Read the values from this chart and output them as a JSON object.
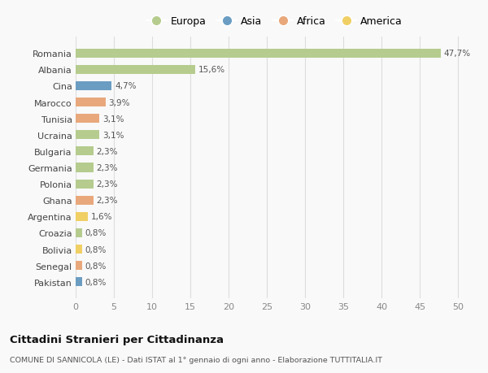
{
  "countries": [
    "Romania",
    "Albania",
    "Cina",
    "Marocco",
    "Tunisia",
    "Ucraina",
    "Bulgaria",
    "Germania",
    "Polonia",
    "Ghana",
    "Argentina",
    "Croazia",
    "Bolivia",
    "Senegal",
    "Pakistan"
  ],
  "values": [
    47.7,
    15.6,
    4.7,
    3.9,
    3.1,
    3.1,
    2.3,
    2.3,
    2.3,
    2.3,
    1.6,
    0.8,
    0.8,
    0.8,
    0.8
  ],
  "labels": [
    "47,7%",
    "15,6%",
    "4,7%",
    "3,9%",
    "3,1%",
    "3,1%",
    "2,3%",
    "2,3%",
    "2,3%",
    "2,3%",
    "1,6%",
    "0,8%",
    "0,8%",
    "0,8%",
    "0,8%"
  ],
  "continents": [
    "Europa",
    "Europa",
    "Asia",
    "Africa",
    "Africa",
    "Europa",
    "Europa",
    "Europa",
    "Europa",
    "Africa",
    "America",
    "Europa",
    "America",
    "Africa",
    "Asia"
  ],
  "colors": {
    "Europa": "#b5cc8e",
    "Asia": "#6b9dc2",
    "Africa": "#e8a87c",
    "America": "#f0cf65"
  },
  "legend_order": [
    "Europa",
    "Asia",
    "Africa",
    "America"
  ],
  "xlim": [
    0,
    52
  ],
  "xticks": [
    0,
    5,
    10,
    15,
    20,
    25,
    30,
    35,
    40,
    45,
    50
  ],
  "title": "Cittadini Stranieri per Cittadinanza",
  "subtitle": "COMUNE DI SANNICOLA (LE) - Dati ISTAT al 1° gennaio di ogni anno - Elaborazione TUTTITALIA.IT",
  "bg_color": "#f9f9f9",
  "grid_color": "#dddddd",
  "bar_height": 0.55
}
